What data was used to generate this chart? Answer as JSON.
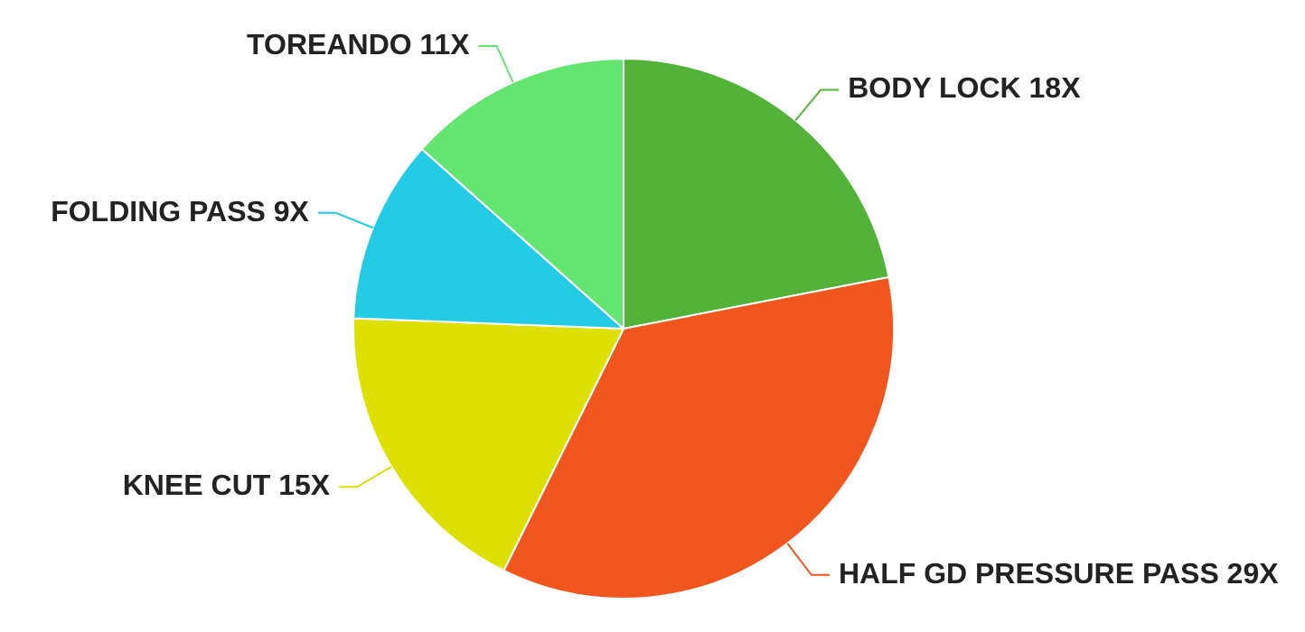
{
  "chart_data": {
    "type": "pie",
    "categories": [
      "BODY LOCK",
      "HALF GD PRESSURE PASS",
      "KNEE CUT",
      "FOLDING PASS",
      "TOREANDO"
    ],
    "values": [
      18,
      29,
      15,
      9,
      11
    ],
    "value_labels": [
      "18X",
      "29X",
      "15X",
      "9X",
      "11X"
    ],
    "colors": [
      "#52b338",
      "#f0561e",
      "#dde000",
      "#24cbe5",
      "#64e572"
    ],
    "legend": false
  }
}
